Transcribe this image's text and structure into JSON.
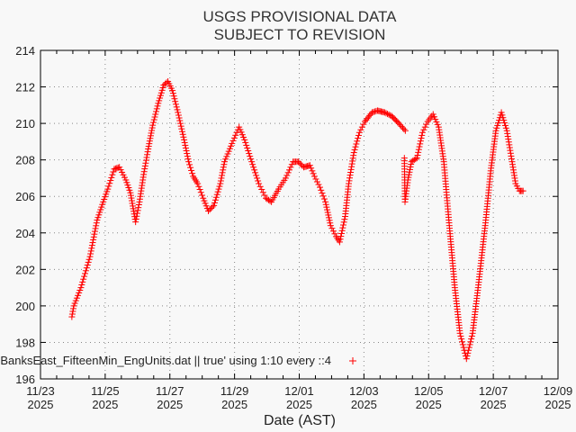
{
  "chart_data": {
    "type": "scatter",
    "title_lines": [
      "USGS PROVISIONAL DATA",
      "SUBJECT TO REVISION"
    ],
    "xlabel": "Date (AST)",
    "ylabel": "",
    "x_units": "days since 11/23/2025 00:00",
    "xlim": [
      0,
      16
    ],
    "ylim": [
      196,
      214
    ],
    "grid": true,
    "x_ticks": [
      {
        "value": 0,
        "line1": "11/23",
        "line2": "2025"
      },
      {
        "value": 2,
        "line1": "11/25",
        "line2": "2025"
      },
      {
        "value": 4,
        "line1": "11/27",
        "line2": "2025"
      },
      {
        "value": 6,
        "line1": "11/29",
        "line2": "2025"
      },
      {
        "value": 8,
        "line1": "12/01",
        "line2": "2025"
      },
      {
        "value": 10,
        "line1": "12/03",
        "line2": "2025"
      },
      {
        "value": 12,
        "line1": "12/05",
        "line2": "2025"
      },
      {
        "value": 14,
        "line1": "12/07",
        "line2": "2025"
      },
      {
        "value": 16,
        "line1": "12/09",
        "line2": "2025"
      }
    ],
    "y_ticks": [
      {
        "value": 196,
        "label": "196"
      },
      {
        "value": 198,
        "label": "198"
      },
      {
        "value": 200,
        "label": "200"
      },
      {
        "value": 202,
        "label": "202"
      },
      {
        "value": 204,
        "label": "204"
      },
      {
        "value": 206,
        "label": "206"
      },
      {
        "value": 208,
        "label": "208"
      },
      {
        "value": 210,
        "label": "210"
      },
      {
        "value": 212,
        "label": "212"
      },
      {
        "value": 214,
        "label": "214"
      }
    ],
    "legend": {
      "label": "BanksEast_FifteenMin_EngUnits.dat || true' using 1:10 every ::4",
      "placement": "bottom-center"
    },
    "series": [
      {
        "name": "BanksEast_FifteenMin_EngUnits.dat",
        "color": "#ff0000",
        "marker": "plus",
        "segments": [
          {
            "x": [
              0.97,
              1.03,
              1.25,
              1.53,
              1.75,
              1.94,
              2.08,
              2.28,
              2.44,
              2.64,
              2.78,
              2.94,
              3.06,
              3.19,
              3.33,
              3.47,
              3.64,
              3.81,
              3.94,
              4.08,
              4.25,
              4.44,
              4.58,
              4.72,
              4.86,
              5.03,
              5.19,
              5.36,
              5.56,
              5.69,
              5.92,
              6.14,
              6.31,
              6.53,
              6.75,
              6.97,
              7.14,
              7.36,
              7.58,
              7.81,
              7.97,
              8.14,
              8.33,
              8.47,
              8.64,
              8.81,
              8.97,
              9.14,
              9.25,
              9.42,
              9.53,
              9.69,
              9.86,
              10.03,
              10.25,
              10.42,
              10.64,
              10.86,
              11.08,
              11.28
            ],
            "y": [
              199.4,
              200.0,
              201.0,
              202.7,
              204.7,
              205.7,
              206.4,
              207.5,
              207.6,
              206.9,
              206.2,
              204.6,
              205.7,
              207.2,
              208.6,
              209.9,
              211.1,
              212.1,
              212.3,
              211.8,
              210.6,
              209.1,
              207.9,
              207.1,
              206.7,
              205.9,
              205.2,
              205.5,
              206.7,
              207.9,
              208.9,
              209.8,
              209.1,
              207.9,
              206.7,
              205.9,
              205.7,
              206.4,
              207.0,
              207.9,
              207.9,
              207.6,
              207.7,
              207.1,
              206.5,
              205.7,
              204.4,
              203.8,
              203.5,
              204.9,
              206.7,
              208.4,
              209.5,
              210.1,
              210.6,
              210.7,
              210.6,
              210.4,
              210.0,
              209.6
            ]
          },
          {
            "x": [
              11.25,
              11.27,
              11.36,
              11.47,
              11.64,
              11.81,
              11.97,
              12.14,
              12.31,
              12.47,
              12.64,
              12.81,
              12.97,
              13.17,
              13.36,
              13.53,
              13.75,
              13.92,
              14.08,
              14.25,
              14.42,
              14.58,
              14.69,
              14.81,
              14.92
            ],
            "y": [
              208.1,
              205.7,
              206.9,
              207.9,
              208.1,
              209.5,
              210.1,
              210.5,
              209.8,
              207.9,
              204.4,
              201.0,
              198.5,
              197.1,
              198.5,
              201.0,
              204.4,
              207.4,
              209.6,
              210.6,
              209.6,
              207.9,
              206.7,
              206.3,
              206.3
            ]
          }
        ]
      }
    ]
  }
}
